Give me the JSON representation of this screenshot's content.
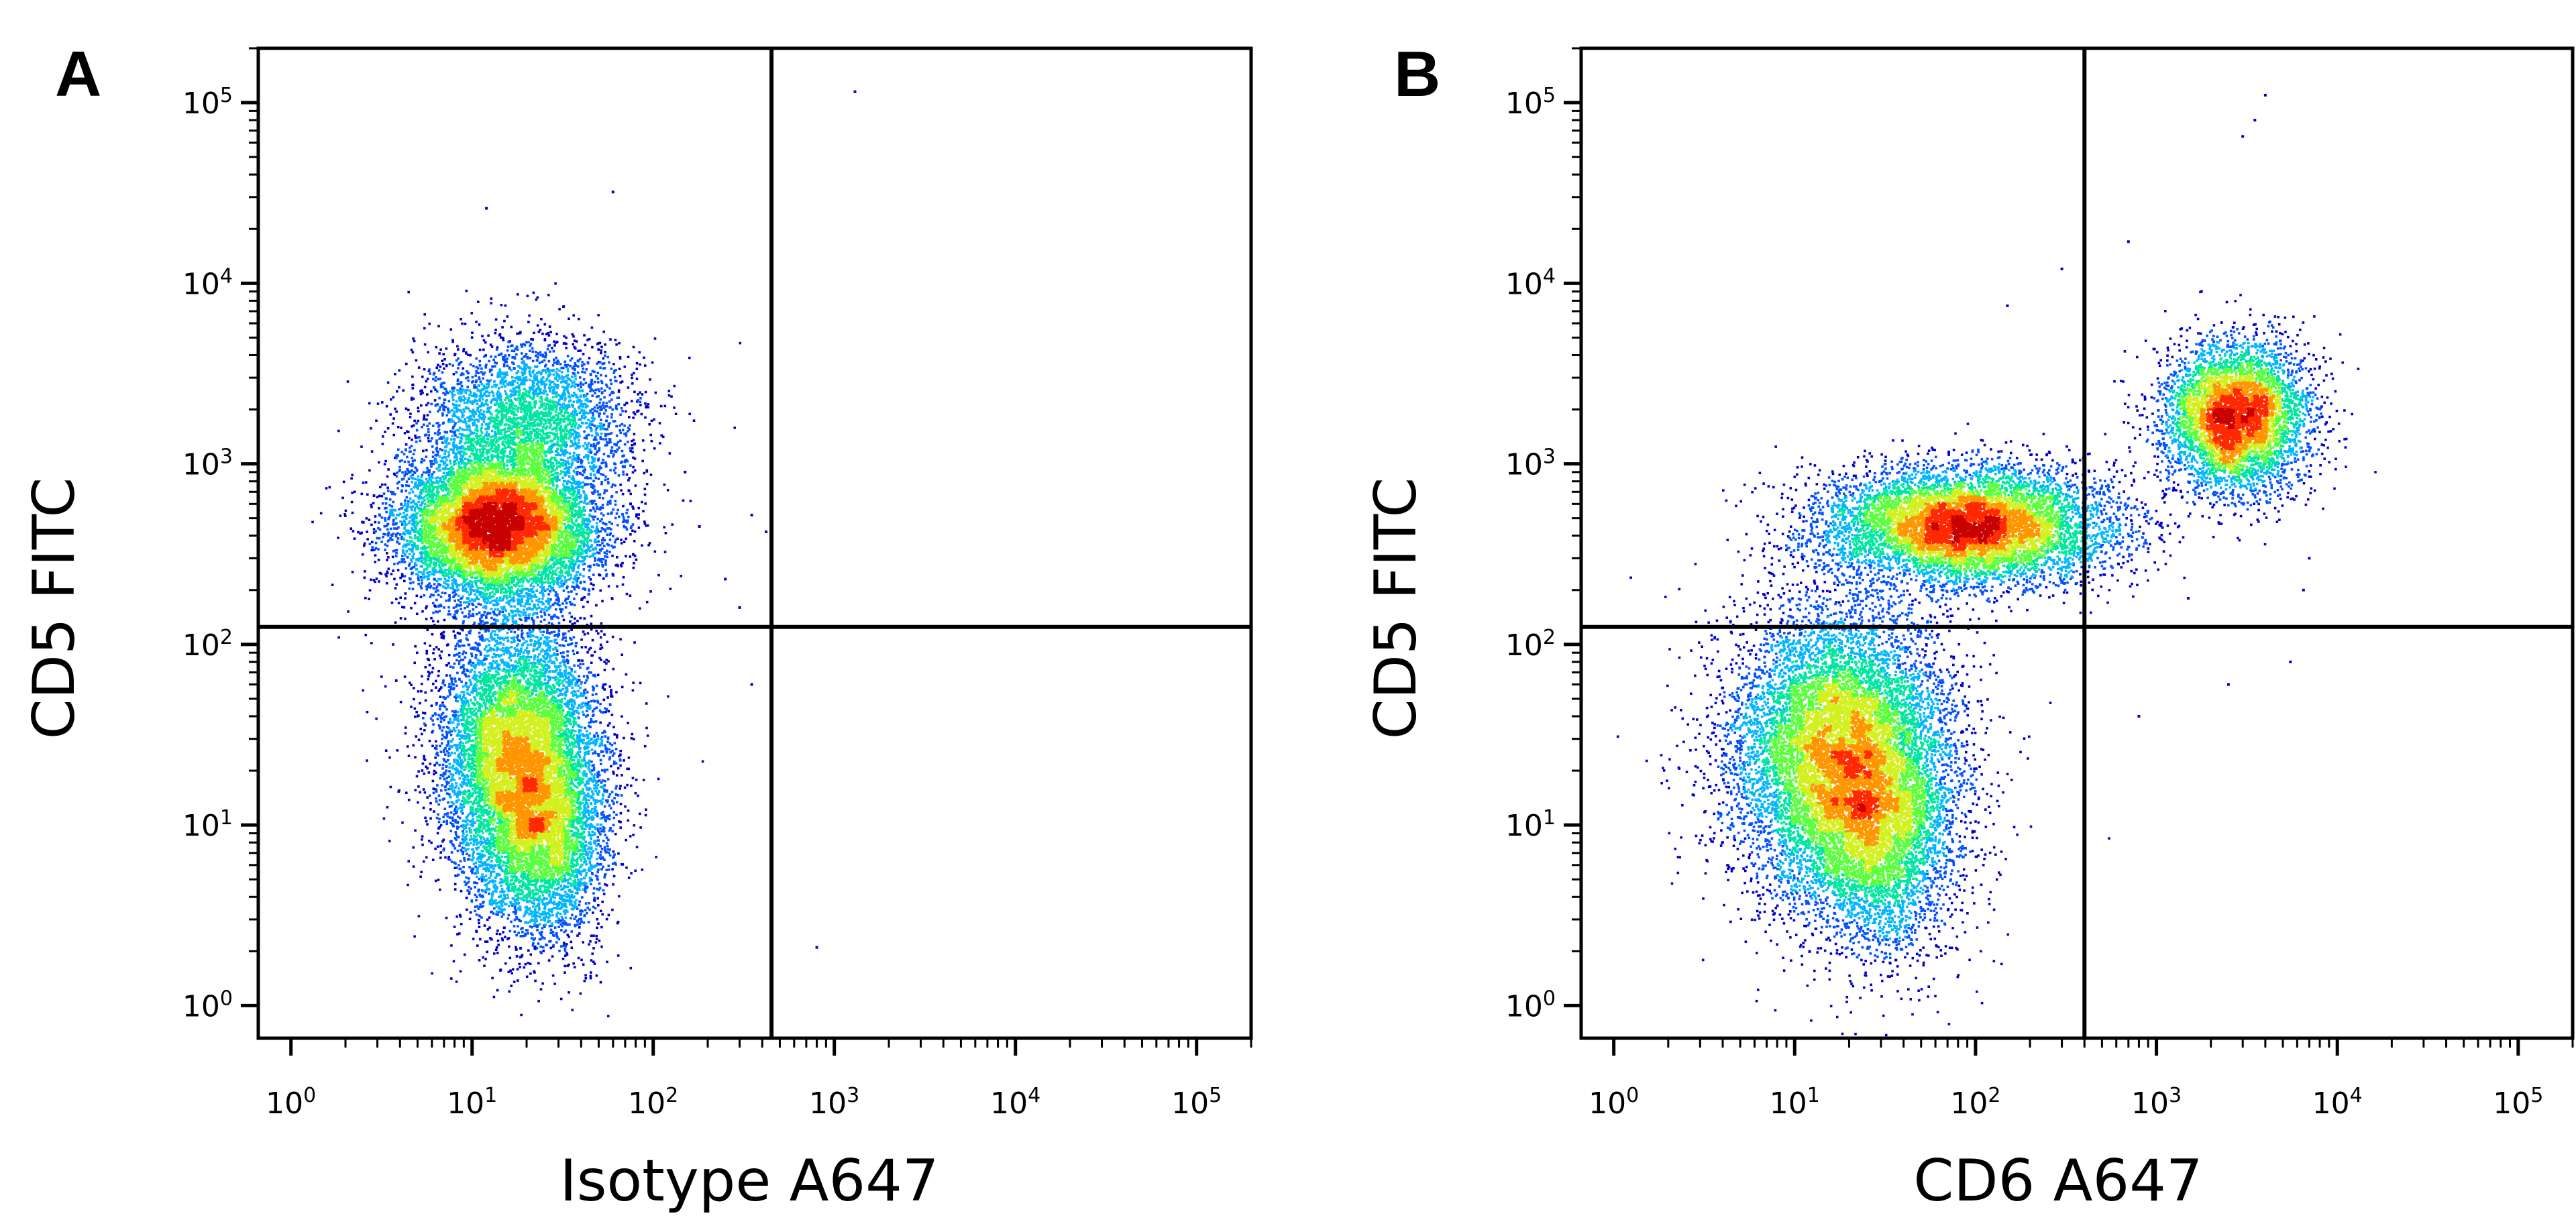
{
  "chart_data": [
    {
      "type": "scatter",
      "panel_label": "A",
      "xlabel": "Isotype A647",
      "ylabel": "CD5 FITC",
      "x_scale": "log",
      "y_scale": "log",
      "xlim": [
        0.66,
        200000
      ],
      "ylim": [
        0.66,
        200000
      ],
      "x_ticks": [
        {
          "base": "10",
          "exp": "0",
          "value": 1
        },
        {
          "base": "10",
          "exp": "1",
          "value": 10
        },
        {
          "base": "10",
          "exp": "2",
          "value": 100
        },
        {
          "base": "10",
          "exp": "3",
          "value": 1000
        },
        {
          "base": "10",
          "exp": "4",
          "value": 10000
        },
        {
          "base": "10",
          "exp": "5",
          "value": 100000
        }
      ],
      "y_ticks": [
        {
          "base": "10",
          "exp": "0",
          "value": 1
        },
        {
          "base": "10",
          "exp": "1",
          "value": 10
        },
        {
          "base": "10",
          "exp": "2",
          "value": 100
        },
        {
          "base": "10",
          "exp": "3",
          "value": 1000
        },
        {
          "base": "10",
          "exp": "4",
          "value": 10000
        },
        {
          "base": "10",
          "exp": "5",
          "value": 100000
        }
      ],
      "quadrant_gates": {
        "x": 450,
        "y": 125
      },
      "colormap": [
        "#0000c8",
        "#0050ff",
        "#00b4ff",
        "#00e6a0",
        "#5aff3c",
        "#d2f01e",
        "#ff9600",
        "#ff2800",
        "#c80000"
      ],
      "populations": [
        {
          "x": 14,
          "y": 450,
          "spread_x": 0.28,
          "spread_y": 0.2,
          "count": 9000
        },
        {
          "x": 20,
          "y": 1800,
          "spread_x": 0.3,
          "spread_y": 0.22,
          "count": 3200
        },
        {
          "x": 18,
          "y": 25,
          "spread_x": 0.22,
          "spread_y": 0.38,
          "count": 8000
        },
        {
          "x": 25,
          "y": 8,
          "spread_x": 0.18,
          "spread_y": 0.3,
          "count": 3000
        }
      ],
      "outliers": [
        [
          1300,
          115000
        ],
        [
          60,
          32000
        ],
        [
          12,
          26000
        ],
        [
          75,
          600
        ],
        [
          180,
          450
        ],
        [
          350,
          520
        ],
        [
          420,
          420
        ],
        [
          800,
          2.1
        ],
        [
          350,
          60
        ],
        [
          300,
          160
        ],
        [
          250,
          230
        ],
        [
          150,
          900
        ]
      ]
    },
    {
      "type": "scatter",
      "panel_label": "B",
      "xlabel": "CD6 A647",
      "ylabel": "CD5 FITC",
      "x_scale": "log",
      "y_scale": "log",
      "xlim": [
        0.66,
        200000
      ],
      "ylim": [
        0.66,
        200000
      ],
      "x_ticks": [
        {
          "base": "10",
          "exp": "0",
          "value": 1
        },
        {
          "base": "10",
          "exp": "1",
          "value": 10
        },
        {
          "base": "10",
          "exp": "2",
          "value": 100
        },
        {
          "base": "10",
          "exp": "3",
          "value": 1000
        },
        {
          "base": "10",
          "exp": "4",
          "value": 10000
        },
        {
          "base": "10",
          "exp": "5",
          "value": 100000
        }
      ],
      "y_ticks": [
        {
          "base": "10",
          "exp": "0",
          "value": 1
        },
        {
          "base": "10",
          "exp": "1",
          "value": 10
        },
        {
          "base": "10",
          "exp": "2",
          "value": 100
        },
        {
          "base": "10",
          "exp": "3",
          "value": 1000
        },
        {
          "base": "10",
          "exp": "4",
          "value": 10000
        },
        {
          "base": "10",
          "exp": "5",
          "value": 100000
        }
      ],
      "quadrant_gates": {
        "x": 400,
        "y": 125
      },
      "colormap": [
        "#0000c8",
        "#0050ff",
        "#00b4ff",
        "#00e6a0",
        "#5aff3c",
        "#d2f01e",
        "#ff9600",
        "#ff2800",
        "#c80000"
      ],
      "populations": [
        {
          "x": 90,
          "y": 450,
          "spread_x": 0.4,
          "spread_y": 0.16,
          "count": 7500
        },
        {
          "x": 2800,
          "y": 1800,
          "spread_x": 0.2,
          "spread_y": 0.2,
          "count": 5000
        },
        {
          "x": 18,
          "y": 25,
          "spread_x": 0.3,
          "spread_y": 0.4,
          "count": 10000
        },
        {
          "x": 30,
          "y": 8,
          "spread_x": 0.22,
          "spread_y": 0.32,
          "count": 3000
        }
      ],
      "outliers": [
        [
          4000,
          110000
        ],
        [
          3000,
          65000
        ],
        [
          3500,
          80000
        ],
        [
          700,
          17000
        ],
        [
          300,
          12000
        ],
        [
          150,
          7500
        ],
        [
          7000,
          300
        ],
        [
          6500,
          200
        ],
        [
          5500,
          80
        ],
        [
          1500,
          180
        ],
        [
          800,
          40
        ],
        [
          2500,
          60
        ]
      ]
    }
  ]
}
